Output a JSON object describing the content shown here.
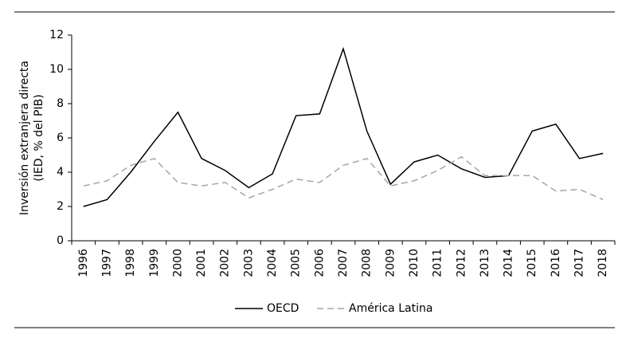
{
  "chart_data": {
    "type": "line",
    "ylabel": [
      "Inversión extranjera directa",
      "(IED, % del PIB)"
    ],
    "categories": [
      "1996",
      "1997",
      "1998",
      "1999",
      "2000",
      "2001",
      "2002",
      "2003",
      "2004",
      "2005",
      "2006",
      "2007",
      "2008",
      "2009",
      "2010",
      "2011",
      "2012",
      "2013",
      "2014",
      "2015",
      "2016",
      "2017",
      "2018"
    ],
    "series": [
      {
        "name": "OECD",
        "color": "#000000",
        "dashed": false,
        "values": [
          2.0,
          2.4,
          4.0,
          5.8,
          7.5,
          4.8,
          4.1,
          3.1,
          3.9,
          7.3,
          7.4,
          11.2,
          6.4,
          3.3,
          4.6,
          5.0,
          4.2,
          3.7,
          3.8,
          6.4,
          6.8,
          4.8,
          5.1
        ]
      },
      {
        "name": "América Latina",
        "color": "#a6a6a6",
        "dashed": true,
        "values": [
          3.2,
          3.5,
          4.4,
          4.8,
          3.4,
          3.2,
          3.4,
          2.5,
          3.0,
          3.6,
          3.4,
          4.4,
          4.8,
          3.2,
          3.5,
          4.1,
          4.9,
          3.8,
          3.8,
          3.8,
          2.9,
          3.0,
          2.4
        ]
      }
    ],
    "ylim": [
      0,
      12
    ],
    "yticks": [
      0,
      2,
      4,
      6,
      8,
      10,
      12
    ],
    "grid": false,
    "legend": "bottom"
  }
}
